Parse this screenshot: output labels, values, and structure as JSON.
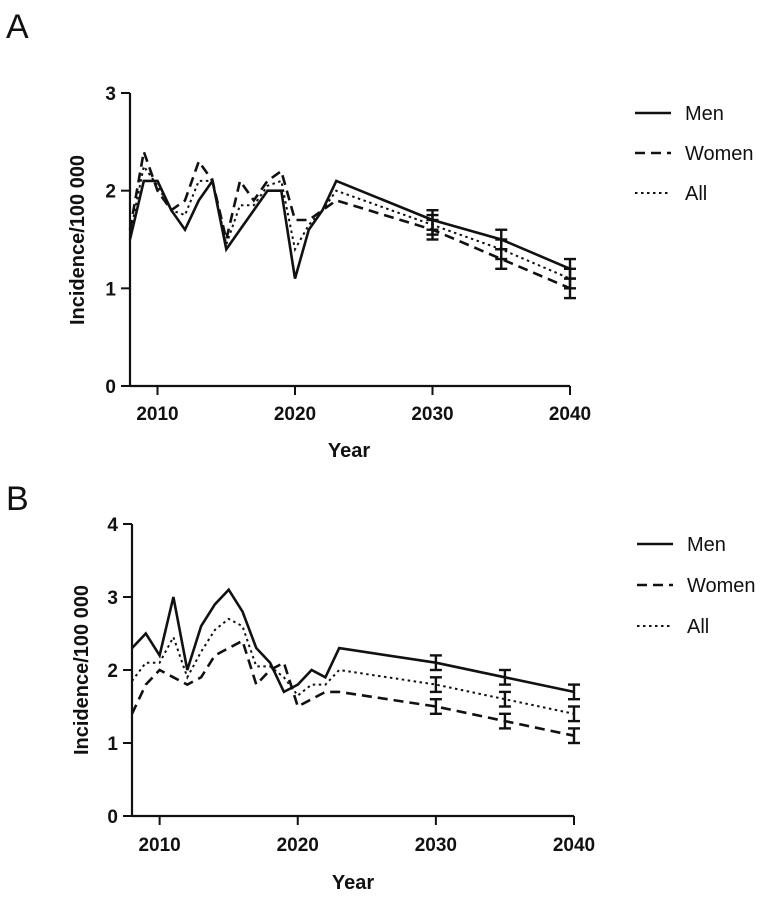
{
  "chart_data": [
    {
      "panel": "A",
      "type": "line",
      "xlabel": "Year",
      "ylabel": "Incidence/100 000",
      "xlim": [
        2008,
        2040
      ],
      "ylim": [
        0,
        3
      ],
      "xticks": [
        2010,
        2020,
        2030,
        2040
      ],
      "yticks": [
        0,
        1,
        2,
        3
      ],
      "legend_position": "right",
      "series": [
        {
          "name": "Men",
          "style": "solid",
          "x": [
            2008,
            2009,
            2010,
            2011,
            2012,
            2013,
            2014,
            2015,
            2016,
            2017,
            2018,
            2019,
            2020,
            2021,
            2022,
            2023,
            2030,
            2035,
            2040
          ],
          "values": [
            1.5,
            2.1,
            2.1,
            1.8,
            1.6,
            1.9,
            2.1,
            1.4,
            1.6,
            1.8,
            2.0,
            2.0,
            1.1,
            1.6,
            1.8,
            2.1,
            1.7,
            1.5,
            1.2
          ],
          "errors": [
            {
              "x": 2030,
              "low": 1.6,
              "high": 1.8
            },
            {
              "x": 2035,
              "low": 1.4,
              "high": 1.6
            },
            {
              "x": 2040,
              "low": 1.1,
              "high": 1.3
            }
          ]
        },
        {
          "name": "Women",
          "style": "dashed",
          "x": [
            2008,
            2009,
            2010,
            2011,
            2012,
            2013,
            2014,
            2015,
            2016,
            2017,
            2018,
            2019,
            2020,
            2021,
            2022,
            2023,
            2030,
            2035,
            2040
          ],
          "values": [
            1.6,
            2.4,
            2.0,
            1.8,
            1.9,
            2.3,
            2.1,
            1.5,
            2.1,
            1.9,
            2.1,
            2.2,
            1.7,
            1.7,
            1.8,
            1.9,
            1.6,
            1.3,
            1.0
          ],
          "errors": [
            {
              "x": 2030,
              "low": 1.5,
              "high": 1.7
            },
            {
              "x": 2035,
              "low": 1.2,
              "high": 1.4
            },
            {
              "x": 2040,
              "low": 0.9,
              "high": 1.1
            }
          ]
        },
        {
          "name": "All",
          "style": "dotted",
          "x": [
            2008,
            2009,
            2010,
            2011,
            2012,
            2013,
            2014,
            2015,
            2016,
            2017,
            2018,
            2019,
            2020,
            2021,
            2022,
            2023,
            2030,
            2035,
            2040
          ],
          "values": [
            1.55,
            2.25,
            2.05,
            1.8,
            1.75,
            2.1,
            2.1,
            1.45,
            1.85,
            1.85,
            2.05,
            2.1,
            1.4,
            1.65,
            1.8,
            2.0,
            1.65,
            1.4,
            1.1
          ],
          "errors": [
            {
              "x": 2030,
              "low": 1.55,
              "high": 1.75
            },
            {
              "x": 2035,
              "low": 1.3,
              "high": 1.5
            },
            {
              "x": 2040,
              "low": 1.0,
              "high": 1.2
            }
          ]
        }
      ]
    },
    {
      "panel": "B",
      "type": "line",
      "xlabel": "Year",
      "ylabel": "Incidence/100 000",
      "xlim": [
        2008,
        2040
      ],
      "ylim": [
        0,
        4
      ],
      "xticks": [
        2010,
        2020,
        2030,
        2040
      ],
      "yticks": [
        0,
        1,
        2,
        3,
        4
      ],
      "legend_position": "right",
      "series": [
        {
          "name": "Men",
          "style": "solid",
          "x": [
            2008,
            2009,
            2010,
            2011,
            2012,
            2013,
            2014,
            2015,
            2016,
            2017,
            2018,
            2019,
            2020,
            2021,
            2022,
            2023,
            2030,
            2035,
            2040
          ],
          "values": [
            2.3,
            2.5,
            2.2,
            3.0,
            2.0,
            2.6,
            2.9,
            3.1,
            2.8,
            2.3,
            2.1,
            1.7,
            1.8,
            2.0,
            1.9,
            2.3,
            2.1,
            1.9,
            1.7
          ],
          "errors": [
            {
              "x": 2030,
              "low": 2.0,
              "high": 2.2
            },
            {
              "x": 2035,
              "low": 1.8,
              "high": 2.0
            },
            {
              "x": 2040,
              "low": 1.6,
              "high": 1.8
            }
          ]
        },
        {
          "name": "Women",
          "style": "dashed",
          "x": [
            2008,
            2009,
            2010,
            2011,
            2012,
            2013,
            2014,
            2015,
            2016,
            2017,
            2018,
            2019,
            2020,
            2021,
            2022,
            2023,
            2030,
            2035,
            2040
          ],
          "values": [
            1.4,
            1.8,
            2.0,
            1.9,
            1.8,
            1.9,
            2.2,
            2.3,
            2.4,
            1.8,
            2.0,
            2.1,
            1.5,
            1.6,
            1.7,
            1.7,
            1.5,
            1.3,
            1.1
          ],
          "errors": [
            {
              "x": 2030,
              "low": 1.4,
              "high": 1.6
            },
            {
              "x": 2035,
              "low": 1.2,
              "high": 1.4
            },
            {
              "x": 2040,
              "low": 1.0,
              "high": 1.2
            }
          ]
        },
        {
          "name": "All",
          "style": "dotted",
          "x": [
            2008,
            2009,
            2010,
            2011,
            2012,
            2013,
            2014,
            2015,
            2016,
            2017,
            2018,
            2019,
            2020,
            2021,
            2022,
            2023,
            2030,
            2035,
            2040
          ],
          "values": [
            1.85,
            2.1,
            2.1,
            2.45,
            1.9,
            2.25,
            2.55,
            2.7,
            2.6,
            2.05,
            2.05,
            1.9,
            1.65,
            1.8,
            1.8,
            2.0,
            1.8,
            1.6,
            1.4
          ],
          "errors": [
            {
              "x": 2030,
              "low": 1.7,
              "high": 1.9
            },
            {
              "x": 2035,
              "low": 1.5,
              "high": 1.7
            },
            {
              "x": 2040,
              "low": 1.3,
              "high": 1.5
            }
          ]
        }
      ]
    }
  ]
}
